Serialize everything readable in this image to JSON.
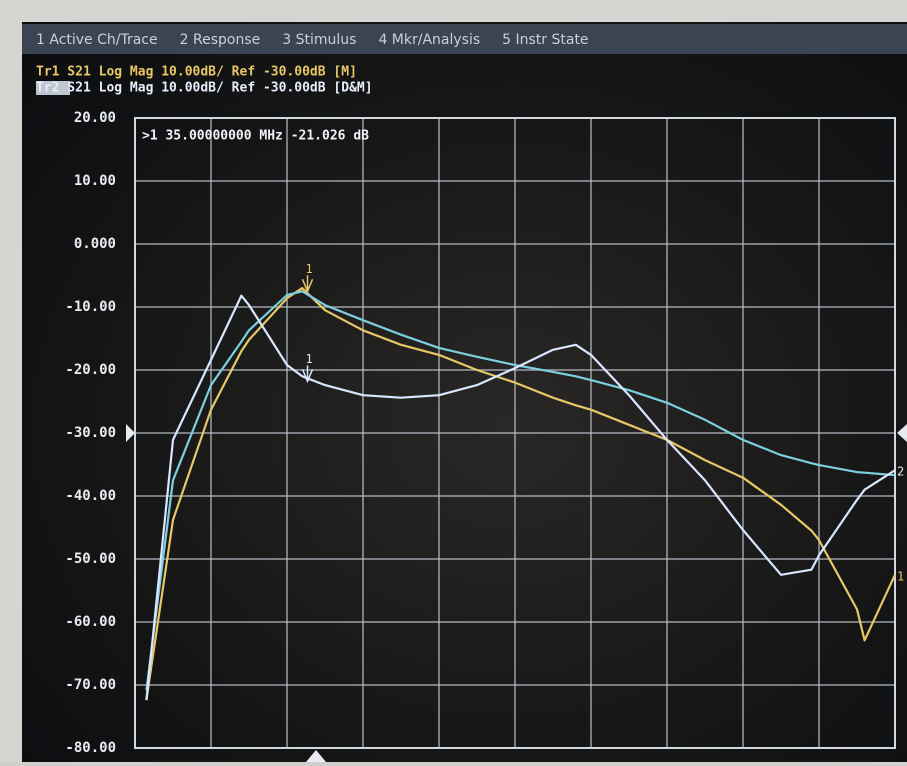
{
  "menu": [
    "1 Active Ch/Trace",
    "2 Response",
    "3 Stimulus",
    "4 Mkr/Analysis",
    "5 Instr State"
  ],
  "traces": [
    "Tr1 S21 Log Mag 10.00dB/ Ref -30.00dB [M]",
    "Tr2 S21 Log Mag 10.00dB/ Ref -30.00dB [D&M]"
  ],
  "chart_data": {
    "type": "line",
    "annotation": ">1  35.00000000 MHz -21.026 dB",
    "x": [
      0.15,
      0.5,
      1,
      1.4,
      1.5,
      2,
      2.2,
      2.5,
      3,
      3.5,
      4,
      4.5,
      5,
      5.5,
      5.8,
      6,
      6.5,
      7,
      7.5,
      8,
      8.5,
      8.9,
      9,
      9.5,
      9.6,
      10
    ],
    "xlim": [
      0,
      10
    ],
    "ylim": [
      -80,
      20
    ],
    "yticks": [
      {
        "value": -80,
        "label": "-80.00"
      },
      {
        "value": -70,
        "label": "-70.00"
      },
      {
        "value": -60,
        "label": "-60.00"
      },
      {
        "value": -50,
        "label": "-50.00"
      },
      {
        "value": -40,
        "label": "-40.00"
      },
      {
        "value": -30,
        "label": "-30.00"
      },
      {
        "value": -20,
        "label": "-20.00"
      },
      {
        "value": -10,
        "label": "-10.00"
      },
      {
        "value": 0,
        "label": "0.000"
      },
      {
        "value": 10,
        "label": "10.00"
      },
      {
        "value": 20,
        "label": "20.00"
      }
    ],
    "grid": true,
    "series": [
      {
        "color": "#e8c766",
        "end_label": "1",
        "values": [
          -72.4,
          -43.8,
          -26.3,
          -17,
          -15.2,
          -8.6,
          -7,
          -10.5,
          -13.7,
          -16,
          -17.6,
          -20,
          -22,
          -24.4,
          -25.6,
          -26.3,
          -28.7,
          -31.1,
          -34.3,
          -37.1,
          -41.4,
          -45.5,
          -47,
          -58,
          -62.9,
          -52.5
        ]
      },
      {
        "color": "#7ccfe0",
        "values": [
          -70.8,
          -37.5,
          -22.4,
          -15.5,
          -13.7,
          -8.1,
          -7.5,
          -9.7,
          -12.1,
          -14.4,
          -16.5,
          -17.9,
          -19.2,
          -20.3,
          -21,
          -21.6,
          -23.2,
          -25.2,
          -27.9,
          -31.1,
          -33.5,
          -34.8,
          -35.1,
          -36.2,
          -36.3,
          -36.7
        ]
      },
      {
        "color": "#d8e6ff",
        "end_label": "2",
        "values": [
          -72.4,
          -31.1,
          -18.4,
          -8.2,
          -9.7,
          -19.2,
          -21,
          -22.4,
          -24,
          -24.4,
          -24,
          -22.4,
          -19.7,
          -16.8,
          -16,
          -17.6,
          -24,
          -31.1,
          -37.5,
          -45.4,
          -52.5,
          -51.7,
          -49.4,
          -40.6,
          -39,
          -35.9
        ]
      }
    ],
    "markers": [
      {
        "x": 2.27,
        "y": -7.5,
        "label": "1",
        "color": "#e8c766"
      },
      {
        "x": 2.27,
        "y": -21.8,
        "label": "1",
        "color": "#d8e6ff"
      }
    ]
  }
}
